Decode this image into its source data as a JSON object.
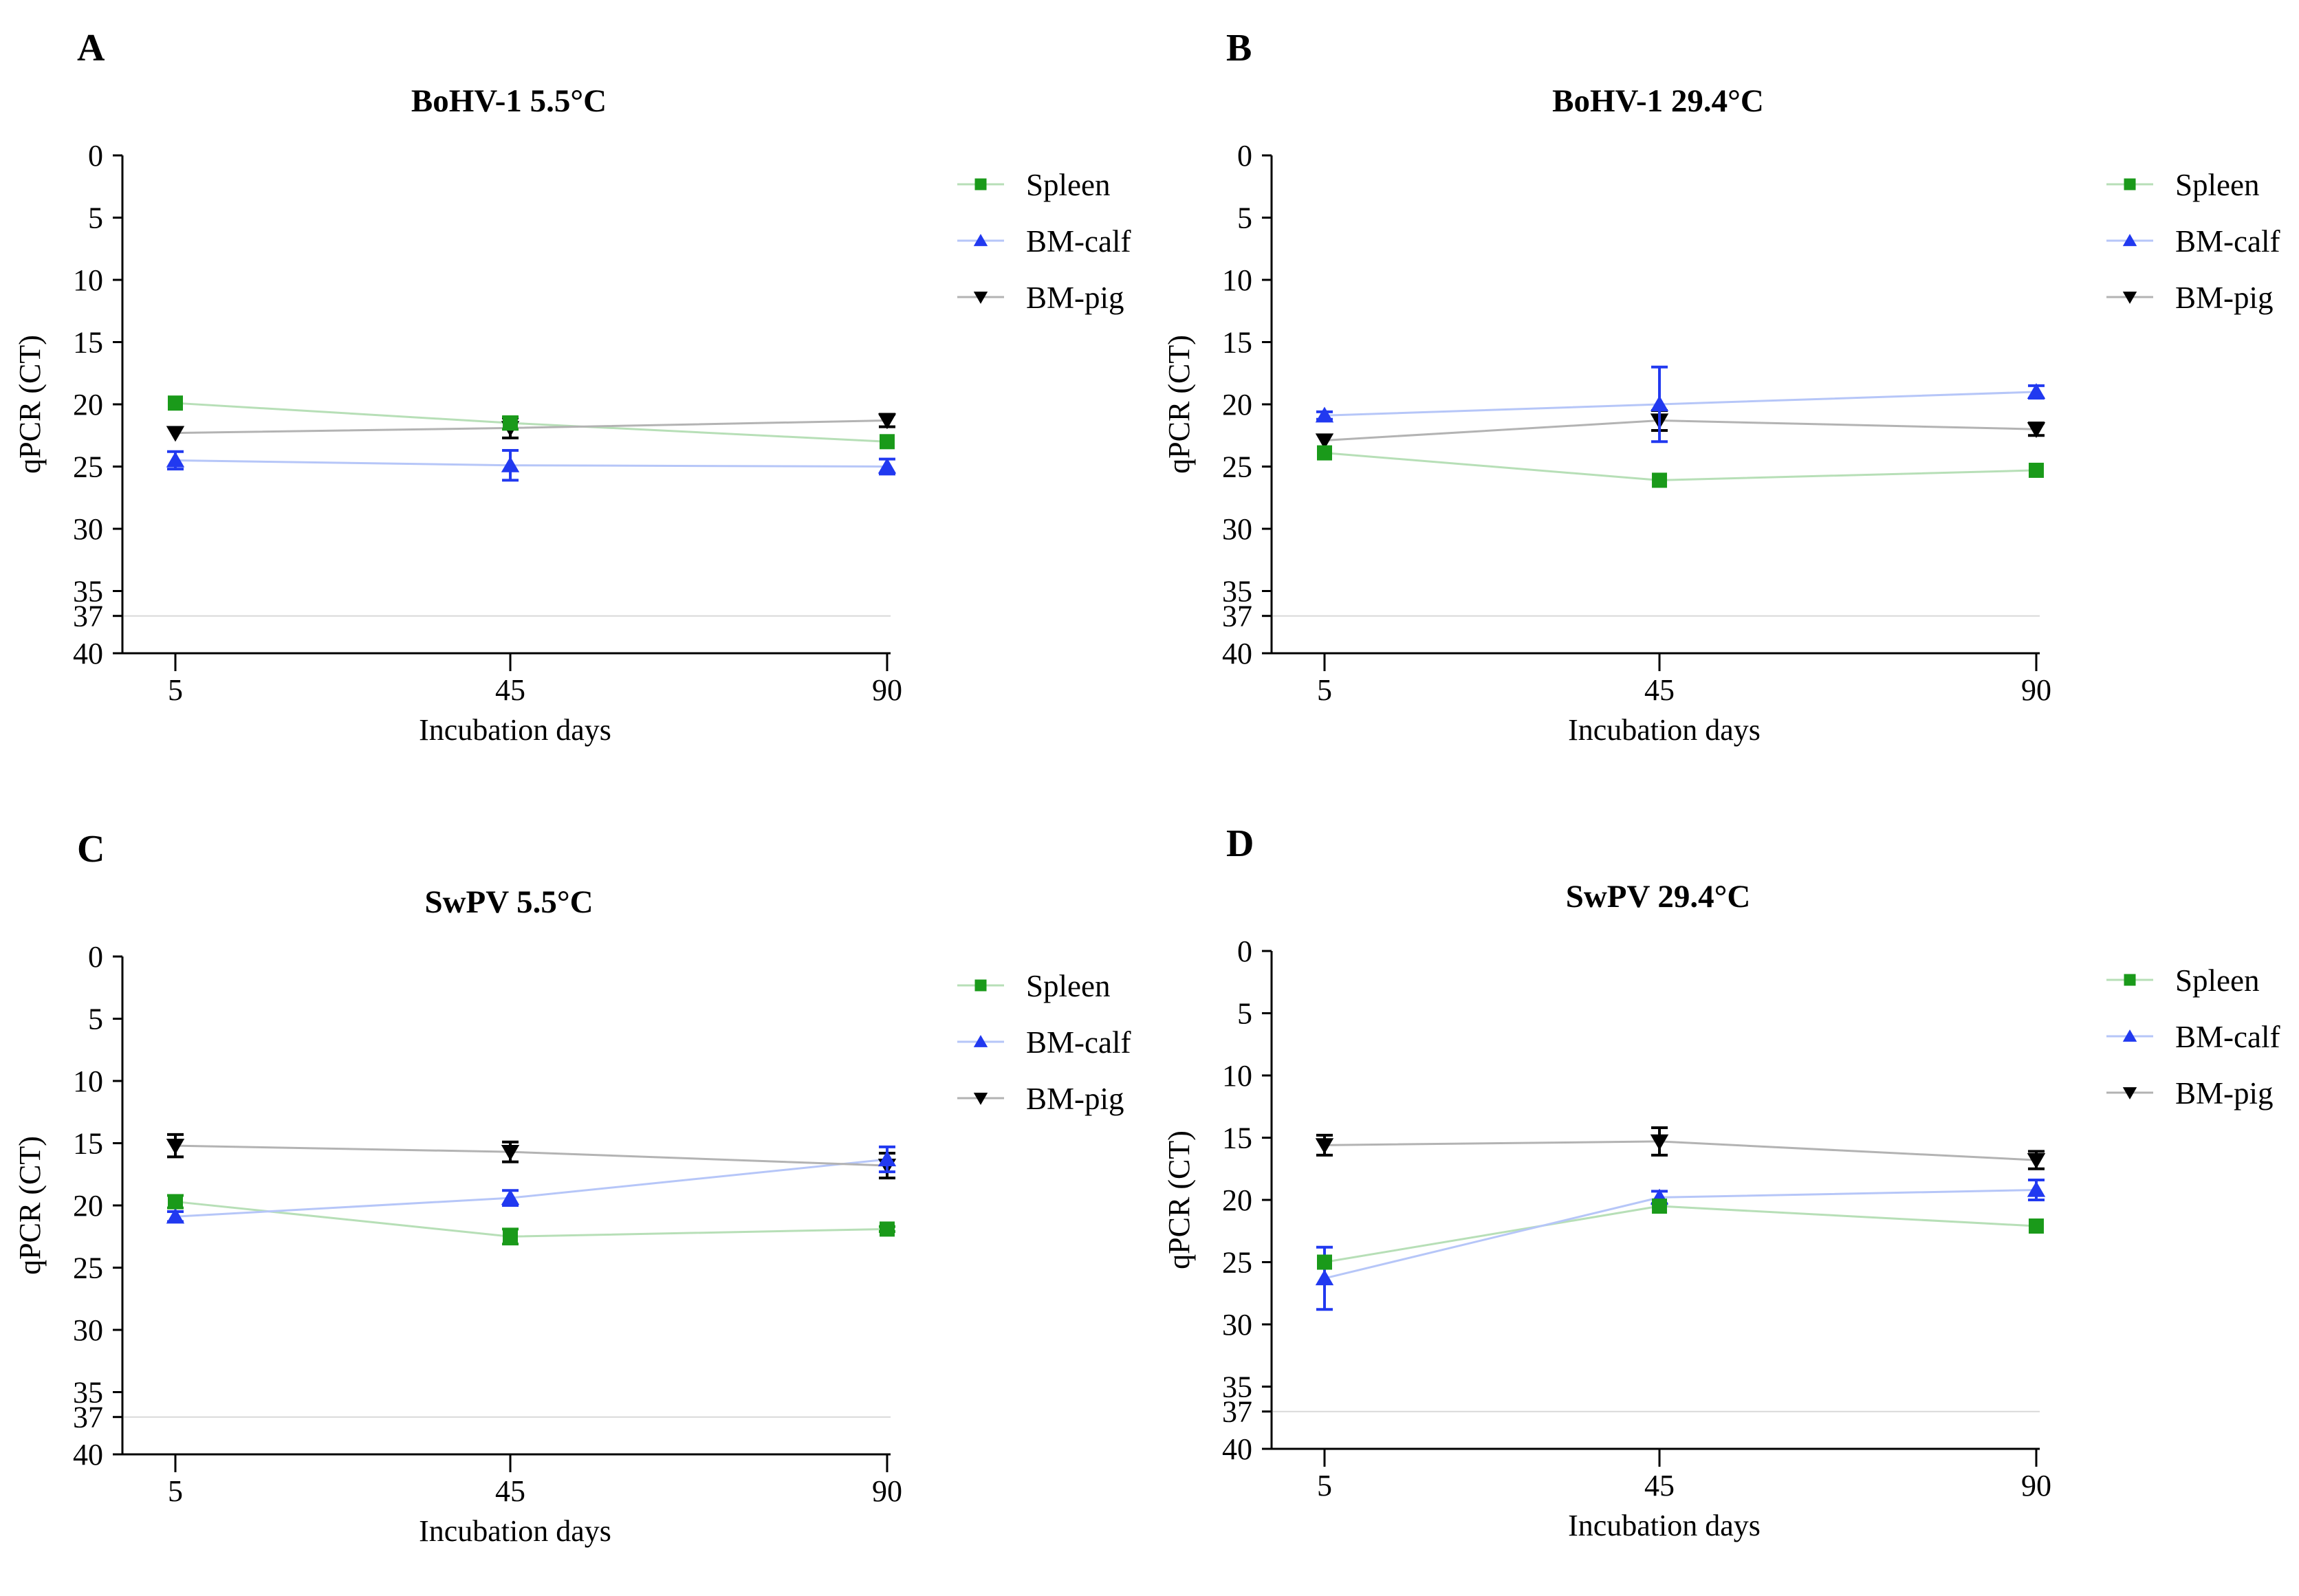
{
  "figure": {
    "background": "#ffffff",
    "cutoff_color": "#d9d9d9",
    "axis_color": "#000000"
  },
  "chart_data": [
    {
      "panel": "A",
      "title": "BoHV-1 5.5°C",
      "type": "line",
      "x": [
        5,
        45,
        90
      ],
      "xlabel": "Incubation days",
      "ylabel": "qPCR (CT)",
      "ylim": [
        0,
        40
      ],
      "y_inverted": true,
      "y_ticks": [
        0,
        5,
        10,
        15,
        20,
        25,
        30,
        35,
        37,
        40
      ],
      "cutoff_line": 37,
      "legend_position": "right-top",
      "series": [
        {
          "name": "Spleen",
          "marker": "square",
          "color": "#1a9a1a",
          "line_color": "#b7dfb7",
          "values": [
            19.9,
            21.5,
            23.0
          ],
          "errors": [
            0,
            0.5,
            0
          ]
        },
        {
          "name": "BM-calf",
          "marker": "triangle-up",
          "color": "#2139f0",
          "line_color": "#b6c6f8",
          "values": [
            24.5,
            24.9,
            25.0
          ],
          "errors": [
            0.7,
            1.2,
            0.6
          ]
        },
        {
          "name": "BM-pig",
          "marker": "triangle-down",
          "color": "#000000",
          "line_color": "#b3b3b3",
          "values": [
            22.3,
            21.9,
            21.3
          ],
          "errors": [
            0,
            0.8,
            0.5
          ]
        }
      ]
    },
    {
      "panel": "B",
      "title": "BoHV-1 29.4°C",
      "type": "line",
      "x": [
        5,
        45,
        90
      ],
      "xlabel": "Incubation days",
      "ylabel": "qPCR (CT)",
      "ylim": [
        0,
        40
      ],
      "y_inverted": true,
      "y_ticks": [
        0,
        5,
        10,
        15,
        20,
        25,
        30,
        35,
        37,
        40
      ],
      "cutoff_line": 37,
      "legend_position": "right-top",
      "series": [
        {
          "name": "Spleen",
          "marker": "square",
          "color": "#1a9a1a",
          "line_color": "#b7dfb7",
          "values": [
            23.9,
            26.1,
            25.3
          ],
          "errors": [
            0,
            0,
            0
          ]
        },
        {
          "name": "BM-calf",
          "marker": "triangle-up",
          "color": "#2139f0",
          "line_color": "#b6c6f8",
          "values": [
            20.9,
            20.0,
            19.0
          ],
          "errors": [
            0.3,
            3.0,
            0.5
          ]
        },
        {
          "name": "BM-pig",
          "marker": "triangle-down",
          "color": "#000000",
          "line_color": "#b3b3b3",
          "values": [
            22.9,
            21.3,
            22.0
          ],
          "errors": [
            0,
            0.8,
            0.5
          ]
        }
      ]
    },
    {
      "panel": "C",
      "title": "SwPV 5.5°C",
      "type": "line",
      "x": [
        5,
        45,
        90
      ],
      "xlabel": "Incubation days",
      "ylabel": "qPCR (CT)",
      "ylim": [
        0,
        40
      ],
      "y_inverted": true,
      "y_ticks": [
        0,
        5,
        10,
        15,
        20,
        25,
        30,
        35,
        37,
        40
      ],
      "cutoff_line": 37,
      "legend_position": "right-top",
      "series": [
        {
          "name": "Spleen",
          "marker": "square",
          "color": "#1a9a1a",
          "line_color": "#b7dfb7",
          "values": [
            19.7,
            22.5,
            21.9
          ],
          "errors": [
            0.5,
            0.6,
            0.2
          ]
        },
        {
          "name": "BM-calf",
          "marker": "triangle-up",
          "color": "#2139f0",
          "line_color": "#b6c6f8",
          "values": [
            20.9,
            19.4,
            16.3
          ],
          "errors": [
            0.4,
            0.6,
            1.0
          ]
        },
        {
          "name": "BM-pig",
          "marker": "triangle-down",
          "color": "#000000",
          "line_color": "#b3b3b3",
          "values": [
            15.2,
            15.7,
            16.8
          ],
          "errors": [
            0.9,
            0.8,
            1.0
          ]
        }
      ]
    },
    {
      "panel": "D",
      "title": "SwPV 29.4°C",
      "type": "line",
      "x": [
        5,
        45,
        90
      ],
      "xlabel": "Incubation days",
      "ylabel": "qPCR (CT)",
      "ylim": [
        0,
        40
      ],
      "y_inverted": true,
      "y_ticks": [
        0,
        5,
        10,
        15,
        20,
        25,
        30,
        35,
        37,
        40
      ],
      "cutoff_line": 37,
      "legend_position": "right-top",
      "series": [
        {
          "name": "Spleen",
          "marker": "square",
          "color": "#1a9a1a",
          "line_color": "#b7dfb7",
          "values": [
            25.0,
            20.5,
            22.1
          ],
          "errors": [
            0,
            0,
            0
          ]
        },
        {
          "name": "BM-calf",
          "marker": "triangle-up",
          "color": "#2139f0",
          "line_color": "#b6c6f8",
          "values": [
            26.3,
            19.8,
            19.2
          ],
          "errors": [
            2.5,
            0.5,
            0.8
          ]
        },
        {
          "name": "BM-pig",
          "marker": "triangle-down",
          "color": "#000000",
          "line_color": "#b3b3b3",
          "values": [
            15.6,
            15.3,
            16.8
          ],
          "errors": [
            0.8,
            1.1,
            0.7
          ]
        }
      ]
    }
  ]
}
